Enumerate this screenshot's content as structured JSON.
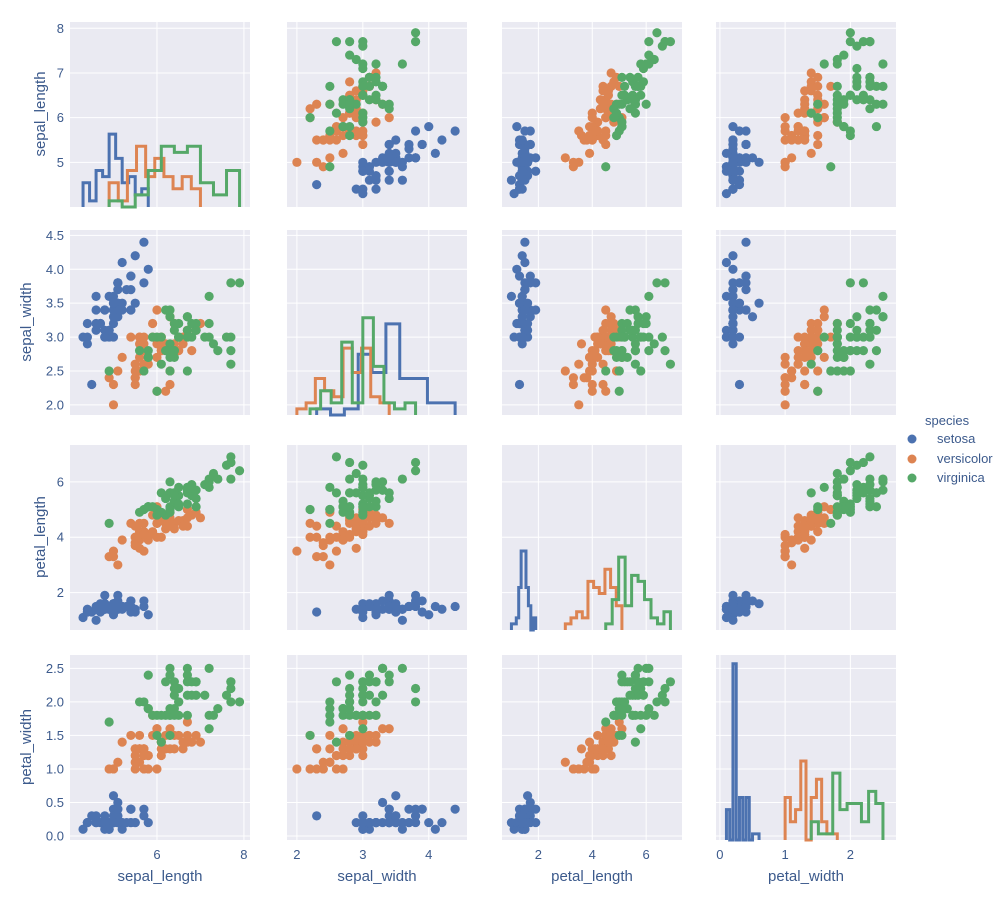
{
  "chart_data": {
    "type": "scatter",
    "subtype": "pairplot",
    "variables": [
      "sepal_length",
      "sepal_width",
      "petal_length",
      "petal_width"
    ],
    "diagonal": "histogram-step",
    "grid": true,
    "background": "#eaeaf2",
    "axes": {
      "sepal_length": {
        "lim": [
          4.0,
          8.14
        ],
        "xticks": [
          6,
          8
        ],
        "yticks": [
          5,
          6,
          7,
          8
        ],
        "xtick_labels": [
          "6",
          "8"
        ],
        "ytick_labels": [
          "5",
          "6",
          "7",
          "8"
        ]
      },
      "sepal_width": {
        "lim": [
          1.85,
          4.58
        ],
        "xticks": [
          2,
          3,
          4
        ],
        "yticks": [
          2.0,
          2.5,
          3.0,
          3.5,
          4.0,
          4.5
        ],
        "xtick_labels": [
          "2",
          "3",
          "4"
        ],
        "ytick_labels": [
          "2.0",
          "2.5",
          "3.0",
          "3.5",
          "4.0",
          "4.5"
        ]
      },
      "petal_length": {
        "lim": [
          0.65,
          7.33
        ],
        "xticks": [
          2,
          4,
          6
        ],
        "yticks": [
          2,
          4,
          6
        ],
        "xtick_labels": [
          "2",
          "4",
          "6"
        ],
        "ytick_labels": [
          "2",
          "4",
          "6"
        ]
      },
      "petal_width": {
        "lim": [
          -0.06,
          2.7
        ],
        "xticks": [
          0,
          1,
          2
        ],
        "yticks": [
          0.0,
          0.5,
          1.0,
          1.5,
          2.0,
          2.5
        ],
        "xtick_labels": [
          "0",
          "1",
          "2"
        ],
        "ytick_labels": [
          "0.0",
          "0.5",
          "1.0",
          "1.5",
          "2.0",
          "2.5"
        ]
      }
    },
    "legend": {
      "title": "species",
      "placement": "center-right",
      "entries": [
        {
          "name": "setosa",
          "color": "#4c72b0"
        },
        {
          "name": "versicolor",
          "color": "#dd8452"
        },
        {
          "name": "virginica",
          "color": "#55a868"
        }
      ]
    },
    "data": {
      "setosa": [
        [
          5.1,
          3.5,
          1.4,
          0.2
        ],
        [
          4.9,
          3.0,
          1.4,
          0.2
        ],
        [
          4.7,
          3.2,
          1.3,
          0.2
        ],
        [
          4.6,
          3.1,
          1.5,
          0.2
        ],
        [
          5.0,
          3.6,
          1.4,
          0.2
        ],
        [
          5.4,
          3.9,
          1.7,
          0.4
        ],
        [
          4.6,
          3.4,
          1.4,
          0.3
        ],
        [
          5.0,
          3.4,
          1.5,
          0.2
        ],
        [
          4.4,
          2.9,
          1.4,
          0.2
        ],
        [
          4.9,
          3.1,
          1.5,
          0.1
        ],
        [
          5.4,
          3.7,
          1.5,
          0.2
        ],
        [
          4.8,
          3.4,
          1.6,
          0.2
        ],
        [
          4.8,
          3.0,
          1.4,
          0.1
        ],
        [
          4.3,
          3.0,
          1.1,
          0.1
        ],
        [
          5.8,
          4.0,
          1.2,
          0.2
        ],
        [
          5.7,
          4.4,
          1.5,
          0.4
        ],
        [
          5.4,
          3.9,
          1.3,
          0.4
        ],
        [
          5.1,
          3.5,
          1.4,
          0.3
        ],
        [
          5.7,
          3.8,
          1.7,
          0.3
        ],
        [
          5.1,
          3.8,
          1.5,
          0.3
        ],
        [
          5.4,
          3.4,
          1.7,
          0.2
        ],
        [
          5.1,
          3.7,
          1.5,
          0.4
        ],
        [
          4.6,
          3.6,
          1.0,
          0.2
        ],
        [
          5.1,
          3.3,
          1.7,
          0.5
        ],
        [
          4.8,
          3.4,
          1.9,
          0.2
        ],
        [
          5.0,
          3.0,
          1.6,
          0.2
        ],
        [
          5.0,
          3.4,
          1.6,
          0.4
        ],
        [
          5.2,
          3.5,
          1.5,
          0.2
        ],
        [
          5.2,
          3.4,
          1.4,
          0.2
        ],
        [
          4.7,
          3.2,
          1.6,
          0.2
        ],
        [
          4.8,
          3.1,
          1.6,
          0.2
        ],
        [
          5.4,
          3.4,
          1.5,
          0.4
        ],
        [
          5.2,
          4.1,
          1.5,
          0.1
        ],
        [
          5.5,
          4.2,
          1.4,
          0.2
        ],
        [
          4.9,
          3.1,
          1.5,
          0.2
        ],
        [
          5.0,
          3.2,
          1.2,
          0.2
        ],
        [
          5.5,
          3.5,
          1.3,
          0.2
        ],
        [
          4.9,
          3.6,
          1.4,
          0.1
        ],
        [
          4.4,
          3.0,
          1.3,
          0.2
        ],
        [
          5.1,
          3.4,
          1.5,
          0.2
        ],
        [
          5.0,
          3.5,
          1.3,
          0.3
        ],
        [
          4.5,
          2.3,
          1.3,
          0.3
        ],
        [
          4.4,
          3.2,
          1.3,
          0.2
        ],
        [
          5.0,
          3.5,
          1.6,
          0.6
        ],
        [
          5.1,
          3.8,
          1.9,
          0.4
        ],
        [
          4.8,
          3.0,
          1.4,
          0.3
        ],
        [
          5.1,
          3.8,
          1.6,
          0.2
        ],
        [
          4.6,
          3.2,
          1.4,
          0.2
        ],
        [
          5.3,
          3.7,
          1.5,
          0.2
        ],
        [
          5.0,
          3.3,
          1.4,
          0.2
        ]
      ],
      "versicolor": [
        [
          7.0,
          3.2,
          4.7,
          1.4
        ],
        [
          6.4,
          3.2,
          4.5,
          1.5
        ],
        [
          6.9,
          3.1,
          4.9,
          1.5
        ],
        [
          5.5,
          2.3,
          4.0,
          1.3
        ],
        [
          6.5,
          2.8,
          4.6,
          1.5
        ],
        [
          5.7,
          2.8,
          4.5,
          1.3
        ],
        [
          6.3,
          3.3,
          4.7,
          1.6
        ],
        [
          4.9,
          2.4,
          3.3,
          1.0
        ],
        [
          6.6,
          2.9,
          4.6,
          1.3
        ],
        [
          5.2,
          2.7,
          3.9,
          1.4
        ],
        [
          5.0,
          2.0,
          3.5,
          1.0
        ],
        [
          5.9,
          3.0,
          4.2,
          1.5
        ],
        [
          6.0,
          2.2,
          4.0,
          1.0
        ],
        [
          6.1,
          2.9,
          4.7,
          1.4
        ],
        [
          5.6,
          2.9,
          3.6,
          1.3
        ],
        [
          6.7,
          3.1,
          4.4,
          1.4
        ],
        [
          5.6,
          3.0,
          4.5,
          1.5
        ],
        [
          5.8,
          2.7,
          4.1,
          1.0
        ],
        [
          6.2,
          2.2,
          4.5,
          1.5
        ],
        [
          5.6,
          2.5,
          3.9,
          1.1
        ],
        [
          5.9,
          3.2,
          4.8,
          1.8
        ],
        [
          6.1,
          2.8,
          4.0,
          1.3
        ],
        [
          6.3,
          2.5,
          4.9,
          1.5
        ],
        [
          6.1,
          2.8,
          4.7,
          1.2
        ],
        [
          6.4,
          2.9,
          4.3,
          1.3
        ],
        [
          6.6,
          3.0,
          4.4,
          1.4
        ],
        [
          6.8,
          2.8,
          4.8,
          1.4
        ],
        [
          6.7,
          3.0,
          5.0,
          1.7
        ],
        [
          6.0,
          2.9,
          4.5,
          1.5
        ],
        [
          5.7,
          2.6,
          3.5,
          1.0
        ],
        [
          5.5,
          2.4,
          3.8,
          1.1
        ],
        [
          5.5,
          2.4,
          3.7,
          1.0
        ],
        [
          5.8,
          2.7,
          3.9,
          1.2
        ],
        [
          6.0,
          2.7,
          5.1,
          1.6
        ],
        [
          5.4,
          3.0,
          4.5,
          1.5
        ],
        [
          6.0,
          3.4,
          4.5,
          1.6
        ],
        [
          6.7,
          3.1,
          4.7,
          1.5
        ],
        [
          6.3,
          2.3,
          4.4,
          1.3
        ],
        [
          5.6,
          3.0,
          4.1,
          1.3
        ],
        [
          5.5,
          2.5,
          4.0,
          1.3
        ],
        [
          5.5,
          2.6,
          4.4,
          1.2
        ],
        [
          6.1,
          3.0,
          4.6,
          1.4
        ],
        [
          5.8,
          2.6,
          4.0,
          1.2
        ],
        [
          5.0,
          2.3,
          3.3,
          1.0
        ],
        [
          5.6,
          2.7,
          4.2,
          1.3
        ],
        [
          5.7,
          3.0,
          4.2,
          1.2
        ],
        [
          5.7,
          2.9,
          4.2,
          1.3
        ],
        [
          6.2,
          2.9,
          4.3,
          1.3
        ],
        [
          5.1,
          2.5,
          3.0,
          1.1
        ],
        [
          5.7,
          2.8,
          4.1,
          1.3
        ]
      ],
      "virginica": [
        [
          6.3,
          3.3,
          6.0,
          2.5
        ],
        [
          5.8,
          2.7,
          5.1,
          1.9
        ],
        [
          7.1,
          3.0,
          5.9,
          2.1
        ],
        [
          6.3,
          2.9,
          5.6,
          1.8
        ],
        [
          6.5,
          3.0,
          5.8,
          2.2
        ],
        [
          7.6,
          3.0,
          6.6,
          2.1
        ],
        [
          4.9,
          2.5,
          4.5,
          1.7
        ],
        [
          7.3,
          2.9,
          6.3,
          1.8
        ],
        [
          6.7,
          2.5,
          5.8,
          1.8
        ],
        [
          7.2,
          3.6,
          6.1,
          2.5
        ],
        [
          6.5,
          3.2,
          5.1,
          2.0
        ],
        [
          6.4,
          2.7,
          5.3,
          1.9
        ],
        [
          6.8,
          3.0,
          5.5,
          2.1
        ],
        [
          5.7,
          2.5,
          5.0,
          2.0
        ],
        [
          5.8,
          2.8,
          5.1,
          2.4
        ],
        [
          6.4,
          3.2,
          5.3,
          2.3
        ],
        [
          6.5,
          3.0,
          5.5,
          1.8
        ],
        [
          7.7,
          3.8,
          6.7,
          2.2
        ],
        [
          7.7,
          2.6,
          6.9,
          2.3
        ],
        [
          6.0,
          2.2,
          5.0,
          1.5
        ],
        [
          6.9,
          3.2,
          5.7,
          2.3
        ],
        [
          5.6,
          2.8,
          4.9,
          2.0
        ],
        [
          7.7,
          2.8,
          6.7,
          2.0
        ],
        [
          6.3,
          2.7,
          4.9,
          1.8
        ],
        [
          6.7,
          3.3,
          5.7,
          2.1
        ],
        [
          7.2,
          3.2,
          6.0,
          1.8
        ],
        [
          6.2,
          2.8,
          4.8,
          1.8
        ],
        [
          6.1,
          3.0,
          4.9,
          1.8
        ],
        [
          6.4,
          2.8,
          5.6,
          2.1
        ],
        [
          7.2,
          3.0,
          5.8,
          1.6
        ],
        [
          7.4,
          2.8,
          6.1,
          1.9
        ],
        [
          7.9,
          3.8,
          6.4,
          2.0
        ],
        [
          6.4,
          2.8,
          5.6,
          2.2
        ],
        [
          6.3,
          2.8,
          5.1,
          1.5
        ],
        [
          6.1,
          2.6,
          5.6,
          1.4
        ],
        [
          7.7,
          3.0,
          6.1,
          2.3
        ],
        [
          6.3,
          3.4,
          5.6,
          2.4
        ],
        [
          6.4,
          3.1,
          5.5,
          1.8
        ],
        [
          6.0,
          3.0,
          4.8,
          1.8
        ],
        [
          6.9,
          3.1,
          5.4,
          2.1
        ],
        [
          6.7,
          3.1,
          5.6,
          2.4
        ],
        [
          6.9,
          3.1,
          5.1,
          2.3
        ],
        [
          5.8,
          2.7,
          5.1,
          1.9
        ],
        [
          6.8,
          3.2,
          5.9,
          2.3
        ],
        [
          6.7,
          3.3,
          5.7,
          2.5
        ],
        [
          6.7,
          3.0,
          5.2,
          2.3
        ],
        [
          6.3,
          2.5,
          5.0,
          1.9
        ],
        [
          6.5,
          3.0,
          5.2,
          2.0
        ],
        [
          6.2,
          3.4,
          5.4,
          2.3
        ],
        [
          5.9,
          3.0,
          5.1,
          1.8
        ]
      ]
    }
  }
}
